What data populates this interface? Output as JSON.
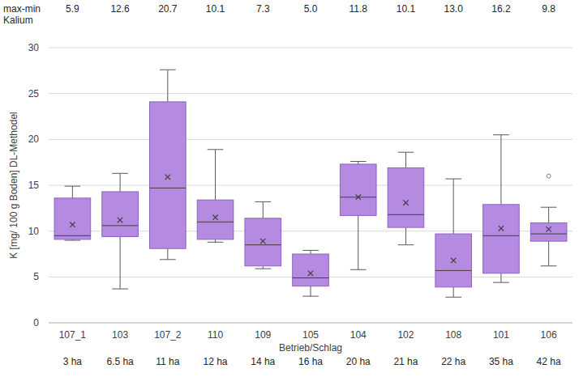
{
  "chart_data": {
    "type": "box",
    "y_label": "K [mg/ 100 g Boden] DL-Methodel",
    "x_label": "Betrieb/Schlag",
    "categories": [
      "107_1",
      "103",
      "107_2",
      "110",
      "109",
      "105",
      "104",
      "102",
      "108",
      "101",
      "106"
    ],
    "boxes": [
      {
        "min": 9.0,
        "q1": 9.1,
        "median": 9.5,
        "q3": 13.6,
        "max": 14.9,
        "mean": 10.7,
        "outliers": []
      },
      {
        "min": 3.7,
        "q1": 9.4,
        "median": 10.6,
        "q3": 14.3,
        "max": 16.3,
        "mean": 11.2,
        "outliers": []
      },
      {
        "min": 6.9,
        "q1": 8.1,
        "median": 14.7,
        "q3": 24.1,
        "max": 27.6,
        "mean": 15.9,
        "outliers": []
      },
      {
        "min": 8.8,
        "q1": 9.1,
        "median": 11.0,
        "q3": 13.4,
        "max": 18.9,
        "mean": 11.5,
        "outliers": []
      },
      {
        "min": 5.9,
        "q1": 6.2,
        "median": 8.5,
        "q3": 11.4,
        "max": 13.2,
        "mean": 8.9,
        "outliers": []
      },
      {
        "min": 2.9,
        "q1": 4.0,
        "median": 4.9,
        "q3": 7.5,
        "max": 7.9,
        "mean": 5.4,
        "outliers": []
      },
      {
        "min": 5.8,
        "q1": 11.7,
        "median": 13.7,
        "q3": 17.3,
        "max": 17.6,
        "mean": 13.7,
        "outliers": []
      },
      {
        "min": 8.5,
        "q1": 10.4,
        "median": 11.8,
        "q3": 16.9,
        "max": 18.6,
        "mean": 13.1,
        "outliers": []
      },
      {
        "min": 2.8,
        "q1": 3.9,
        "median": 5.7,
        "q3": 9.7,
        "max": 15.7,
        "mean": 6.8,
        "outliers": []
      },
      {
        "min": 4.4,
        "q1": 5.4,
        "median": 9.5,
        "q3": 12.9,
        "max": 20.5,
        "mean": 10.3,
        "outliers": []
      },
      {
        "min": 6.2,
        "q1": 8.9,
        "median": 9.7,
        "q3": 10.9,
        "max": 12.6,
        "mean": 10.2,
        "outliers": [
          16.0
        ]
      }
    ],
    "annotations": {
      "title": [
        "max-min",
        "Kalium"
      ],
      "labels": [
        "5.9",
        "12.6",
        "20.7",
        "10.1",
        "7.3",
        "5.0",
        "11.8",
        "10.1",
        "13.0",
        "16.2",
        "9.8"
      ]
    },
    "areas": [
      "3 ha",
      "6.5 ha",
      "11 ha",
      "12 ha",
      "14 ha",
      "16 ha",
      "20 ha",
      "21 ha",
      "22 ha",
      "35 ha",
      "42 ha"
    ],
    "color": "#b48be0",
    "ylim": [
      0,
      30
    ],
    "yticks": [
      0,
      5,
      10,
      15,
      20,
      25,
      30
    ],
    "grid": true
  }
}
